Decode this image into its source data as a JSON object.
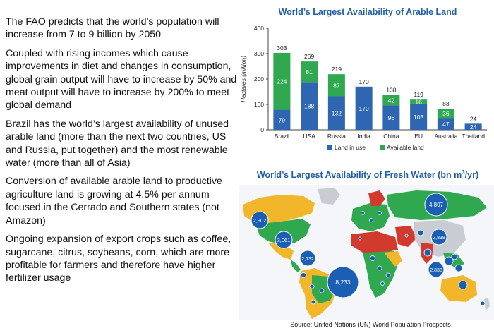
{
  "bullets": [
    "The FAO predicts that the world’s population will increase from 7 to 9 billion by 2050",
    "Coupled with rising incomes which cause improvements in diet and changes in consumption, global grain output will have to increase by 50% and meat output will have to increase by 200% to meet global demand",
    "Brazil has the world’s largest availability of unused arable land  (more than the next two countries, US and Russia, put together) and the most renewable water (more than all of Asia)",
    "Conversion of available arable land to productive agriculture land is growing at 4.5% per annum focused in the Cerrado and Southern states (not Amazon)",
    "Ongoing expansion of export crops such as coffee, sugarcane, citrus, soybeans, corn, which are more profitable for farmers and therefore have higher fertilizer usage"
  ],
  "chart_data": [
    {
      "type": "bar",
      "stacked": true,
      "title": "World’s Largest Availability of Arable Land",
      "ylabel": "Hectares (million)",
      "xlabel": "",
      "ylim": [
        0,
        400
      ],
      "yticks": [
        0,
        100,
        200,
        300,
        400
      ],
      "categories": [
        "Brazil",
        "USA",
        "Russia",
        "India",
        "China",
        "EU",
        "Australia",
        "Thailand"
      ],
      "totals": [
        303,
        269,
        219,
        170,
        138,
        119,
        83,
        24
      ],
      "series": [
        {
          "name": "Land in use",
          "color": "#2e66b1",
          "values": [
            79,
            188,
            132,
            170,
            96,
            103,
            47,
            24
          ]
        },
        {
          "name": "Available land",
          "color": "#2fa84f",
          "values": [
            224,
            81,
            87,
            0,
            42,
            16,
            36,
            0
          ]
        }
      ],
      "legend_position": "bottom",
      "grid": false
    }
  ],
  "water_map": {
    "title_main": "World’s Largest Availability of Fresh Water (bn m",
    "title_sup": "3",
    "title_end": "/yr)",
    "values": [
      {
        "label": "2,902"
      },
      {
        "label": "3,061"
      },
      {
        "label": "2,132"
      },
      {
        "label": "8,233"
      },
      {
        "label": "4,807"
      },
      {
        "label": "2,838"
      },
      {
        "label": "2,838"
      }
    ]
  },
  "source": "Source: United Nations (UN) World Population Prospects",
  "colors": {
    "title_blue": "#1f5ea8",
    "ocean": "#f4f6fa",
    "land_grey": "#c9ccd2",
    "land_yellow": "#f2b62a",
    "land_green": "#2fa84f",
    "land_red": "#d13a2c",
    "bubble_blue": "#1a5fb4"
  }
}
